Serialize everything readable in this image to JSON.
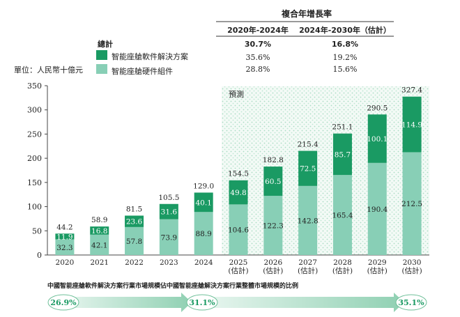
{
  "cagr_table": {
    "title": "複合年增長率",
    "headers": [
      "2020年-2024年",
      "2024年-2030年（估計）"
    ],
    "rows": [
      {
        "label": "總計",
        "values": [
          "30.7%",
          "16.8%"
        ]
      },
      {
        "label": "智能座艙軟件解決方案",
        "values": [
          "35.6%",
          "19.2%"
        ]
      },
      {
        "label": "智能座艙硬件組件",
        "values": [
          "28.8%",
          "15.6%"
        ]
      }
    ]
  },
  "chart_data": {
    "type": "bar",
    "stacked": true,
    "unit_label": "單位：人民幣十億元",
    "forecast_label": "預測",
    "categories": [
      "2020",
      "2021",
      "2022",
      "2023",
      "2024",
      "2025\n(估計)",
      "2026\n(估計)",
      "2027\n(估計)",
      "2028\n(估計)",
      "2029\n(估計)",
      "2030\n(估計)"
    ],
    "series": [
      {
        "name": "智能座艙硬件組件",
        "color": "#88cfb6",
        "values": [
          32.3,
          42.1,
          57.8,
          73.9,
          88.9,
          104.6,
          122.3,
          142.8,
          165.4,
          190.4,
          212.5
        ]
      },
      {
        "name": "智能座艙軟件解決方案",
        "color": "#1a9a63",
        "values": [
          11.9,
          16.8,
          23.6,
          31.6,
          40.1,
          49.8,
          60.5,
          72.5,
          85.7,
          100.1,
          114.9
        ]
      }
    ],
    "totals": [
      44.2,
      58.9,
      81.5,
      105.5,
      129.0,
      154.5,
      182.8,
      215.4,
      251.1,
      290.5,
      327.4
    ],
    "ylim": [
      0,
      350
    ],
    "yticks": [
      0,
      50,
      100,
      150,
      200,
      250,
      300,
      350
    ],
    "forecast_start_index": 5
  },
  "share": {
    "title": "中國智能座艙軟件解決方案行業市場規模佔中國智能座艙解決方案行業整體市場規模的比例",
    "values": [
      "26.9%",
      "31.1%",
      "35.1%"
    ],
    "color": "#1a9a63"
  }
}
